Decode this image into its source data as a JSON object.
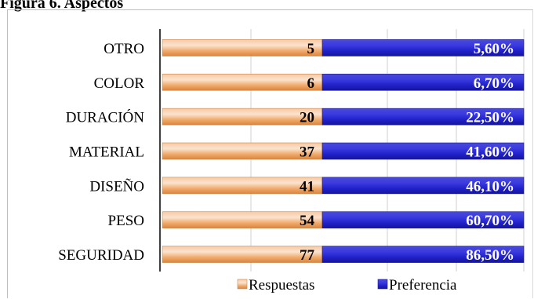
{
  "title": "Figura 6. Aspectos",
  "chart_data": {
    "type": "bar",
    "orientation": "horizontal",
    "stacked": true,
    "categories": [
      "OTRO",
      "COLOR",
      "DURACIÓN",
      "MATERIAL",
      "DISEÑO",
      "PESO",
      "SEGURIDAD"
    ],
    "series": [
      {
        "name": "Respuestas",
        "color": "#f4b183",
        "values": [
          5,
          6,
          20,
          37,
          41,
          54,
          77
        ],
        "labels": [
          "5",
          "6",
          "20",
          "37",
          "41",
          "54",
          "77"
        ]
      },
      {
        "name": "Preferencia",
        "color": "#3333cc",
        "values": [
          5.6,
          6.7,
          22.5,
          41.6,
          46.1,
          60.7,
          86.5
        ],
        "labels": [
          "5,60%",
          "6,70%",
          "22,50%",
          "41,60%",
          "46,10%",
          "60,70%",
          "86,50%"
        ]
      }
    ],
    "grid": true,
    "legend": "bottom"
  }
}
